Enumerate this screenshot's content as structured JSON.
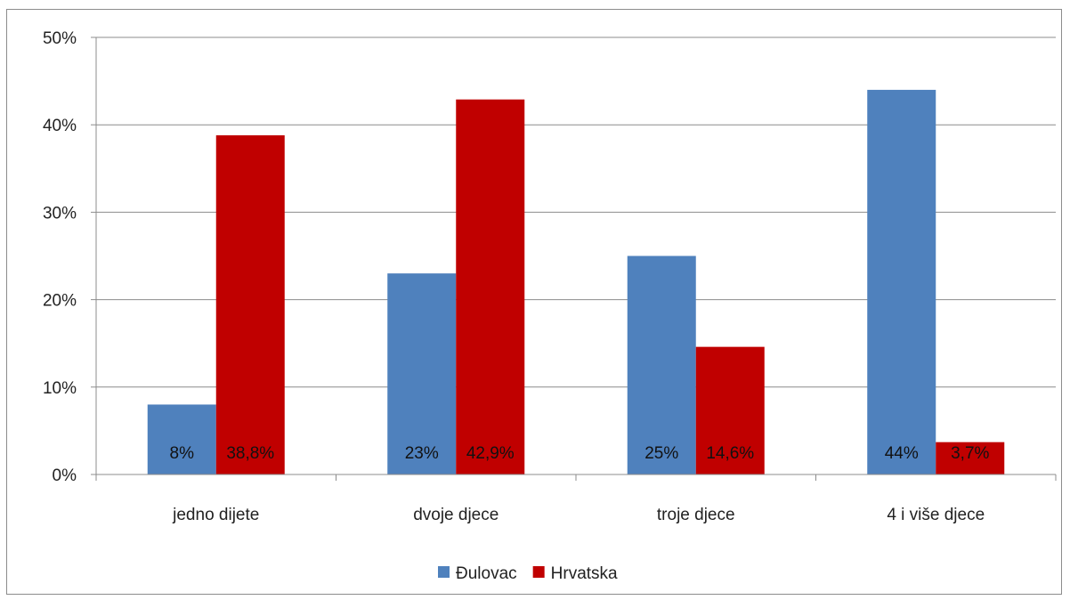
{
  "chart_data": {
    "type": "bar",
    "categories": [
      "jedno dijete",
      "dvoje djece",
      "troje djece",
      "4 i više djece"
    ],
    "series": [
      {
        "name": "Đulovac",
        "values": [
          8,
          23,
          25,
          44
        ],
        "labels": [
          "8%",
          "23%",
          "25%",
          "44%"
        ],
        "color": "#4f81bd"
      },
      {
        "name": "Hrvatska",
        "values": [
          38.8,
          42.9,
          14.6,
          3.7
        ],
        "labels": [
          "38,8%",
          "42,9%",
          "14,6%",
          "3,7%"
        ],
        "color": "#c00000"
      }
    ],
    "yticks": [
      "0%",
      "10%",
      "20%",
      "30%",
      "40%",
      "50%"
    ],
    "ylim": [
      0,
      50
    ],
    "grid": true,
    "legend": "bottom"
  }
}
